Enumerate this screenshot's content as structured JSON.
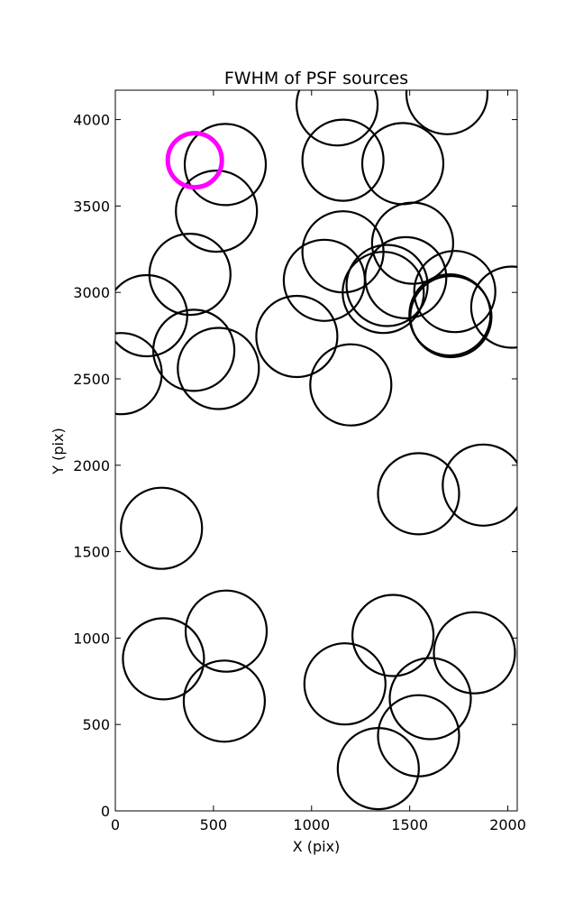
{
  "chart_data": {
    "type": "scatter",
    "title": "FWHM of PSF sources",
    "xlabel": "X (pix)",
    "ylabel": "Y (pix)",
    "xlim": [
      0,
      2048
    ],
    "ylim": [
      0,
      4170
    ],
    "xticks": [
      0,
      500,
      1000,
      1500,
      2000
    ],
    "yticks": [
      0,
      500,
      1000,
      1500,
      2000,
      2500,
      3000,
      3500,
      4000
    ],
    "grid": false,
    "marker": "circle",
    "series": [
      {
        "color": "#000000",
        "points": [
          [
            1130,
            4085
          ],
          [
            1690,
            4150
          ],
          [
            1160,
            3765
          ],
          [
            1465,
            3745
          ],
          [
            560,
            3740
          ],
          [
            515,
            3470
          ],
          [
            380,
            3105
          ],
          [
            160,
            2865
          ],
          [
            30,
            2530
          ],
          [
            400,
            2665
          ],
          [
            525,
            2560
          ],
          [
            925,
            2745
          ],
          [
            1065,
            3070
          ],
          [
            1160,
            3235
          ],
          [
            1515,
            3285
          ],
          [
            1480,
            3085
          ],
          [
            1385,
            3040
          ],
          [
            1365,
            3000
          ],
          [
            1730,
            3005
          ],
          [
            1710,
            2860
          ],
          [
            1705,
            2870
          ],
          [
            2020,
            2915
          ],
          [
            1200,
            2465
          ],
          [
            1545,
            1835
          ],
          [
            1875,
            1885
          ],
          [
            235,
            1635
          ],
          [
            565,
            1040
          ],
          [
            245,
            880
          ],
          [
            555,
            635
          ],
          [
            1415,
            1015
          ],
          [
            1170,
            735
          ],
          [
            1605,
            650
          ],
          [
            1830,
            915
          ],
          [
            1545,
            435
          ],
          [
            1340,
            245
          ]
        ]
      },
      {
        "color": "#ff00ff",
        "points": [
          [
            405,
            3765
          ]
        ]
      }
    ]
  }
}
